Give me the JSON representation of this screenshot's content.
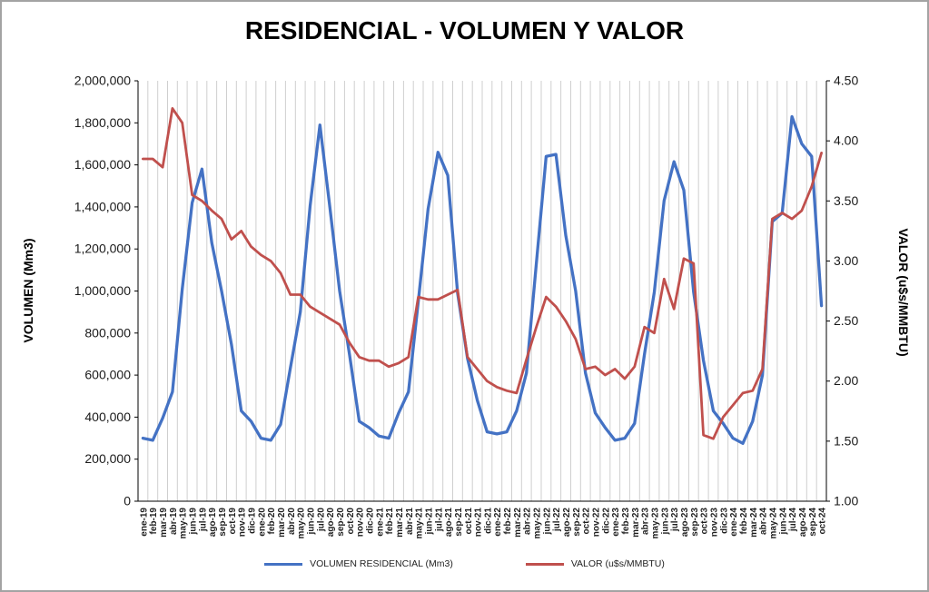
{
  "chart_data": {
    "type": "line",
    "title": "RESIDENCIAL - VOLUMEN Y VALOR",
    "grid": "vertical-only",
    "legend_position": "bottom",
    "categories": [
      "ene-19",
      "feb-19",
      "mar-19",
      "abr-19",
      "may-19",
      "jun-19",
      "jul-19",
      "ago-19",
      "sep-19",
      "oct-19",
      "nov-19",
      "dic-19",
      "ene-20",
      "feb-20",
      "mar-20",
      "abr-20",
      "may-20",
      "jun-20",
      "jul-20",
      "ago-20",
      "sep-20",
      "oct-20",
      "nov-20",
      "dic-20",
      "ene-21",
      "feb-21",
      "mar-21",
      "abr-21",
      "may-21",
      "jun-21",
      "jul-21",
      "ago-21",
      "sep-21",
      "oct-21",
      "nov-21",
      "dic-21",
      "ene-22",
      "feb-22",
      "mar-22",
      "abr-22",
      "may-22",
      "jun-22",
      "jul-22",
      "ago-22",
      "sep-22",
      "oct-22",
      "nov-22",
      "dic-22",
      "ene-23",
      "feb-23",
      "mar-23",
      "abr-23",
      "may-23",
      "jun-23",
      "jul-23",
      "ago-23",
      "sep-23",
      "oct-23",
      "nov-23",
      "dic-23",
      "ene-24",
      "feb-24",
      "mar-24",
      "abr-24",
      "may-24",
      "jun-24",
      "jul-24",
      "ago-24",
      "sep-24",
      "oct-24"
    ],
    "series": [
      {
        "name": "VOLUMEN RESIDENCIAL (Mm3)",
        "axis": "left",
        "color": "#4472C4",
        "values": [
          300000,
          290000,
          395000,
          520000,
          1010000,
          1420000,
          1580000,
          1230000,
          1000000,
          745000,
          430000,
          380000,
          300000,
          290000,
          365000,
          635000,
          900000,
          1405000,
          1790000,
          1400000,
          1000000,
          700000,
          380000,
          350000,
          310000,
          300000,
          420000,
          520000,
          950000,
          1390000,
          1660000,
          1550000,
          990000,
          680000,
          480000,
          330000,
          320000,
          330000,
          430000,
          610000,
          1130000,
          1640000,
          1650000,
          1265000,
          1000000,
          610000,
          420000,
          350000,
          290000,
          300000,
          370000,
          700000,
          995000,
          1430000,
          1615000,
          1480000,
          995000,
          670000,
          430000,
          370000,
          300000,
          275000,
          380000,
          600000,
          1330000,
          1370000,
          1830000,
          1700000,
          1640000,
          930000
        ]
      },
      {
        "name": "VALOR (u$s/MMBTU)",
        "axis": "right",
        "color": "#C0504D",
        "values": [
          3.85,
          3.85,
          3.78,
          4.27,
          4.15,
          3.55,
          3.5,
          3.42,
          3.35,
          3.18,
          3.25,
          3.12,
          3.05,
          3.0,
          2.9,
          2.72,
          2.72,
          2.62,
          2.57,
          2.52,
          2.47,
          2.32,
          2.2,
          2.17,
          2.17,
          2.12,
          2.15,
          2.2,
          2.7,
          2.68,
          2.68,
          2.72,
          2.76,
          2.2,
          2.1,
          2.0,
          1.95,
          1.92,
          1.9,
          2.18,
          2.45,
          2.7,
          2.62,
          2.5,
          2.35,
          2.1,
          2.12,
          2.05,
          2.1,
          2.02,
          2.12,
          2.45,
          2.4,
          2.85,
          2.6,
          3.02,
          2.98,
          1.55,
          1.52,
          1.7,
          1.8,
          1.9,
          1.92,
          2.1,
          3.35,
          3.4,
          3.35,
          3.42,
          3.62,
          3.9
        ]
      }
    ],
    "left_axis": {
      "label": "VOLUMEN (Mm3)",
      "min": 0,
      "max": 2000000,
      "step": 200000,
      "tick_labels": [
        "0",
        "200,000",
        "400,000",
        "600,000",
        "800,000",
        "1,000,000",
        "1,200,000",
        "1,400,000",
        "1,600,000",
        "1,800,000",
        "2,000,000"
      ]
    },
    "right_axis": {
      "label": "VALOR (u$s/MMBTU)",
      "min": 1.0,
      "max": 4.5,
      "step": 0.5,
      "tick_labels": [
        "1.00",
        "1.50",
        "2.00",
        "2.50",
        "3.00",
        "3.50",
        "4.00",
        "4.50"
      ]
    }
  }
}
